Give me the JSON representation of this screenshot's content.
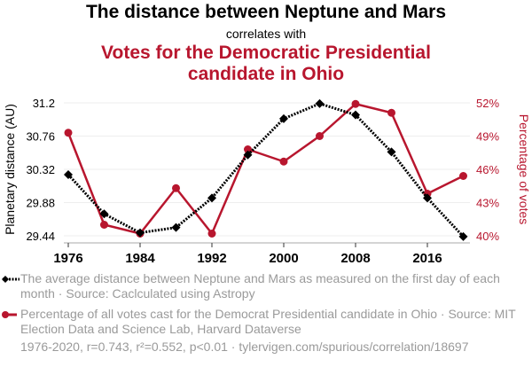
{
  "header": {
    "title": "The distance between Neptune and Mars",
    "subtitle": "correlates with",
    "title2": "Votes for the Democratic Presidential candidate in Ohio"
  },
  "legend": {
    "series1": "The average distance between Neptune and Mars as measured on the first day of each month · Source: Caclculated using Astropy",
    "series2": "Percentage of all votes cast for the Democrat Presidential candidate in Ohio · Source: MIT Election Data and Science Lab, Harvard Dataverse"
  },
  "footer": "1976-2020, r=0.743, r²=0.552, p<0.01 · tylervigen.com/spurious/correlation/18697",
  "colors": {
    "series1": "#000000",
    "series2": "#b8162e",
    "grid": "#eeeeee",
    "legend_text": "#9a9a9a"
  },
  "chart_data": {
    "type": "line",
    "title": "The distance between Neptune and Mars correlates with Votes for the Democratic Presidential candidate in Ohio",
    "x": [
      1976,
      1980,
      1984,
      1988,
      1992,
      1996,
      2000,
      2004,
      2008,
      2012,
      2016,
      2020
    ],
    "x_ticks": [
      "1976",
      "1984",
      "1992",
      "2000",
      "2008",
      "2016"
    ],
    "xlim": [
      1975.5,
      2021.5
    ],
    "ylabel": "Planetary distance (AU)",
    "ylabel_right": "Percentage of votes",
    "y_ticks": [
      "29.44",
      "29.88",
      "30.32",
      "30.76",
      "31.2"
    ],
    "y_tick_values": [
      29.44,
      29.88,
      30.32,
      30.76,
      31.2
    ],
    "ylim": [
      29.44,
      31.2
    ],
    "y2_ticks": [
      "40%",
      "43%",
      "46%",
      "49%",
      "52%"
    ],
    "y2_tick_values": [
      40,
      43,
      46,
      49,
      52
    ],
    "y2lim": [
      40,
      52
    ],
    "grid": true,
    "legend_position": "bottom",
    "series": [
      {
        "name": "The average distance between Neptune and Mars",
        "axis": "left",
        "marker": "diamond",
        "style": "dotted",
        "values": [
          30.25,
          29.73,
          29.48,
          29.55,
          29.94,
          30.51,
          30.99,
          31.19,
          31.04,
          30.55,
          29.94,
          29.43
        ]
      },
      {
        "name": "Votes for the Democratic Presidential candidate in Ohio",
        "axis": "right",
        "marker": "circle",
        "style": "solid",
        "values": [
          49.3,
          41.0,
          40.2,
          44.3,
          40.2,
          47.8,
          46.7,
          49.0,
          51.9,
          51.1,
          43.8,
          45.4
        ]
      }
    ]
  }
}
